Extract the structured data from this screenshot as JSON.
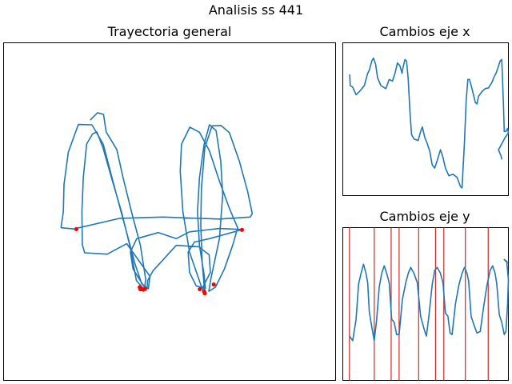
{
  "figure": {
    "suptitle": "Analisis ss 441",
    "colors": {
      "line": "#1f77b4",
      "marker": "#ff0000",
      "vline": "#d62728",
      "frame": "#000000"
    }
  },
  "chart_data": [
    {
      "type": "line",
      "title": "Trayectoria general",
      "axes_visible": false,
      "grid": false,
      "xlim": [
        0,
        1
      ],
      "ylim": [
        0,
        1
      ],
      "series": [
        {
          "values": [
            [
              0.262,
              0.772
            ],
            [
              0.283,
              0.793
            ],
            [
              0.301,
              0.788
            ],
            [
              0.309,
              0.736
            ],
            [
              0.341,
              0.684
            ],
            [
              0.36,
              0.6
            ],
            [
              0.385,
              0.5
            ],
            [
              0.412,
              0.4
            ],
            [
              0.428,
              0.3
            ],
            [
              0.424,
              0.268
            ],
            [
              0.4,
              0.296
            ],
            [
              0.38,
              0.4
            ],
            [
              0.355,
              0.5
            ],
            [
              0.325,
              0.6
            ],
            [
              0.299,
              0.69
            ],
            [
              0.281,
              0.736
            ],
            [
              0.268,
              0.73
            ],
            [
              0.25,
              0.7
            ],
            [
              0.24,
              0.6
            ],
            [
              0.236,
              0.5
            ],
            [
              0.237,
              0.402
            ],
            [
              0.244,
              0.378
            ],
            [
              0.312,
              0.374
            ],
            [
              0.371,
              0.405
            ],
            [
              0.441,
              0.308
            ],
            [
              0.436,
              0.271
            ],
            [
              0.416,
              0.286
            ],
            [
              0.396,
              0.345
            ],
            [
              0.37,
              0.44
            ],
            [
              0.34,
              0.55
            ],
            [
              0.3,
              0.7
            ],
            [
              0.266,
              0.757
            ],
            [
              0.225,
              0.758
            ],
            [
              0.195,
              0.676
            ],
            [
              0.182,
              0.58
            ],
            [
              0.18,
              0.5
            ],
            [
              0.173,
              0.453
            ],
            [
              0.176,
              0.452
            ],
            [
              0.219,
              0.448
            ],
            [
              0.222,
              0.451
            ],
            [
              0.35,
              0.48
            ],
            [
              0.48,
              0.484
            ],
            [
              0.65,
              0.478
            ],
            [
              0.743,
              0.484
            ],
            [
              0.749,
              0.494
            ],
            [
              0.735,
              0.56
            ],
            [
              0.71,
              0.65
            ],
            [
              0.68,
              0.734
            ],
            [
              0.655,
              0.755
            ],
            [
              0.628,
              0.754
            ],
            [
              0.606,
              0.689
            ],
            [
              0.596,
              0.57
            ],
            [
              0.594,
              0.46
            ],
            [
              0.598,
              0.35
            ],
            [
              0.605,
              0.269
            ],
            [
              0.603,
              0.265
            ],
            [
              0.595,
              0.28
            ],
            [
              0.56,
              0.38
            ],
            [
              0.54,
              0.5
            ],
            [
              0.532,
              0.62
            ],
            [
              0.536,
              0.7
            ],
            [
              0.561,
              0.75
            ],
            [
              0.59,
              0.735
            ],
            [
              0.62,
              0.68
            ],
            [
              0.65,
              0.59
            ],
            [
              0.68,
              0.51
            ],
            [
              0.705,
              0.452
            ],
            [
              0.69,
              0.4
            ],
            [
              0.665,
              0.33
            ],
            [
              0.638,
              0.276
            ],
            [
              0.618,
              0.264
            ],
            [
              0.624,
              0.3
            ],
            [
              0.65,
              0.42
            ],
            [
              0.66,
              0.55
            ],
            [
              0.654,
              0.65
            ],
            [
              0.64,
              0.74
            ],
            [
              0.62,
              0.757
            ],
            [
              0.604,
              0.7
            ],
            [
              0.59,
              0.6
            ],
            [
              0.584,
              0.5
            ],
            [
              0.59,
              0.4
            ],
            [
              0.604,
              0.312
            ],
            [
              0.608,
              0.272
            ],
            [
              0.58,
              0.28
            ],
            [
              0.56,
              0.32
            ],
            [
              0.556,
              0.38
            ],
            [
              0.575,
              0.41
            ],
            [
              0.62,
              0.42
            ],
            [
              0.72,
              0.447
            ],
            [
              0.65,
              0.45
            ],
            [
              0.56,
              0.44
            ],
            [
              0.52,
              0.42
            ],
            [
              0.466,
              0.438
            ],
            [
              0.401,
              0.42
            ],
            [
              0.382,
              0.38
            ],
            [
              0.39,
              0.33
            ],
            [
              0.426,
              0.273
            ],
            [
              0.432,
              0.273
            ],
            [
              0.434,
              0.296
            ],
            [
              0.45,
              0.325
            ],
            [
              0.52,
              0.4
            ],
            [
              0.588,
              0.396
            ],
            [
              0.619,
              0.372
            ],
            [
              0.623,
              0.32
            ],
            [
              0.6,
              0.276
            ]
          ]
        }
      ],
      "markers": [
        [
          0.219,
          0.448
        ],
        [
          0.41,
          0.276
        ],
        [
          0.412,
          0.27
        ],
        [
          0.416,
          0.271
        ],
        [
          0.421,
          0.269
        ],
        [
          0.426,
          0.271
        ],
        [
          0.591,
          0.27
        ],
        [
          0.604,
          0.263
        ],
        [
          0.606,
          0.258
        ],
        [
          0.633,
          0.284
        ],
        [
          0.718,
          0.446
        ]
      ]
    },
    {
      "type": "line",
      "title": "Cambios eje x",
      "axes_visible": false,
      "grid": false,
      "xlim": [
        0,
        1
      ],
      "ylim": [
        0,
        1
      ],
      "series": [
        {
          "values": [
            [
              0.042,
              0.79
            ],
            [
              0.045,
              0.72
            ],
            [
              0.06,
              0.71
            ],
            [
              0.08,
              0.66
            ],
            [
              0.1,
              0.68
            ],
            [
              0.13,
              0.72
            ],
            [
              0.15,
              0.8
            ],
            [
              0.16,
              0.82
            ],
            [
              0.175,
              0.88
            ],
            [
              0.185,
              0.9
            ],
            [
              0.198,
              0.86
            ],
            [
              0.21,
              0.77
            ],
            [
              0.23,
              0.72
            ],
            [
              0.26,
              0.7
            ],
            [
              0.28,
              0.76
            ],
            [
              0.3,
              0.75
            ],
            [
              0.315,
              0.8
            ],
            [
              0.33,
              0.868
            ],
            [
              0.345,
              0.85
            ],
            [
              0.358,
              0.8
            ],
            [
              0.36,
              0.82
            ],
            [
              0.375,
              0.89
            ],
            [
              0.385,
              0.88
            ],
            [
              0.395,
              0.76
            ],
            [
              0.405,
              0.56
            ],
            [
              0.415,
              0.4
            ],
            [
              0.43,
              0.37
            ],
            [
              0.455,
              0.36
            ],
            [
              0.47,
              0.42
            ],
            [
              0.48,
              0.45
            ],
            [
              0.495,
              0.38
            ],
            [
              0.51,
              0.34
            ],
            [
              0.525,
              0.29
            ],
            [
              0.54,
              0.2
            ],
            [
              0.555,
              0.18
            ],
            [
              0.57,
              0.23
            ],
            [
              0.59,
              0.3
            ],
            [
              0.605,
              0.25
            ],
            [
              0.62,
              0.18
            ],
            [
              0.64,
              0.13
            ],
            [
              0.665,
              0.14
            ],
            [
              0.69,
              0.12
            ],
            [
              0.71,
              0.06
            ],
            [
              0.72,
              0.05
            ],
            [
              0.735,
              0.35
            ],
            [
              0.745,
              0.62
            ],
            [
              0.755,
              0.76
            ],
            [
              0.765,
              0.76
            ],
            [
              0.78,
              0.7
            ],
            [
              0.8,
              0.61
            ],
            [
              0.81,
              0.6
            ],
            [
              0.82,
              0.65
            ],
            [
              0.84,
              0.68
            ],
            [
              0.86,
              0.7
            ],
            [
              0.88,
              0.705
            ],
            [
              0.9,
              0.74
            ],
            [
              0.915,
              0.78
            ],
            [
              0.925,
              0.8
            ],
            [
              0.935,
              0.83
            ],
            [
              0.95,
              0.88
            ],
            [
              0.96,
              0.89
            ],
            [
              0.97,
              0.6
            ],
            [
              0.975,
              0.42
            ],
            [
              0.985,
              0.42
            ],
            [
              0.995,
              0.44
            ],
            [
              1.0,
              0.41
            ],
            [
              0.98,
              0.38
            ],
            [
              0.965,
              0.35
            ],
            [
              0.94,
              0.3
            ],
            [
              0.955,
              0.26
            ],
            [
              0.96,
              0.24
            ]
          ]
        }
      ]
    },
    {
      "type": "line",
      "title": "Cambios eje y",
      "axes_visible": false,
      "grid": false,
      "xlim": [
        0,
        1
      ],
      "ylim": [
        0,
        1
      ],
      "series": [
        {
          "values": [
            [
              0.04,
              0.29
            ],
            [
              0.06,
              0.26
            ],
            [
              0.08,
              0.4
            ],
            [
              0.095,
              0.63
            ],
            [
              0.11,
              0.7
            ],
            [
              0.125,
              0.76
            ],
            [
              0.14,
              0.7
            ],
            [
              0.15,
              0.64
            ],
            [
              0.16,
              0.45
            ],
            [
              0.175,
              0.35
            ],
            [
              0.19,
              0.26
            ],
            [
              0.205,
              0.4
            ],
            [
              0.22,
              0.61
            ],
            [
              0.235,
              0.7
            ],
            [
              0.25,
              0.75
            ],
            [
              0.265,
              0.7
            ],
            [
              0.28,
              0.64
            ],
            [
              0.295,
              0.4
            ],
            [
              0.31,
              0.38
            ],
            [
              0.325,
              0.3
            ],
            [
              0.34,
              0.3
            ],
            [
              0.36,
              0.53
            ],
            [
              0.38,
              0.64
            ],
            [
              0.395,
              0.7
            ],
            [
              0.41,
              0.74
            ],
            [
              0.43,
              0.7
            ],
            [
              0.45,
              0.64
            ],
            [
              0.47,
              0.42
            ],
            [
              0.49,
              0.34
            ],
            [
              0.505,
              0.29
            ],
            [
              0.52,
              0.42
            ],
            [
              0.54,
              0.63
            ],
            [
              0.555,
              0.72
            ],
            [
              0.57,
              0.74
            ],
            [
              0.59,
              0.7
            ],
            [
              0.605,
              0.64
            ],
            [
              0.62,
              0.44
            ],
            [
              0.635,
              0.42
            ],
            [
              0.648,
              0.31
            ],
            [
              0.66,
              0.3
            ],
            [
              0.68,
              0.5
            ],
            [
              0.7,
              0.62
            ],
            [
              0.72,
              0.7
            ],
            [
              0.735,
              0.74
            ],
            [
              0.75,
              0.7
            ],
            [
              0.76,
              0.65
            ],
            [
              0.775,
              0.42
            ],
            [
              0.79,
              0.37
            ],
            [
              0.81,
              0.31
            ],
            [
              0.83,
              0.32
            ],
            [
              0.85,
              0.48
            ],
            [
              0.87,
              0.62
            ],
            [
              0.89,
              0.72
            ],
            [
              0.905,
              0.75
            ],
            [
              0.92,
              0.7
            ],
            [
              0.93,
              0.63
            ],
            [
              0.945,
              0.43
            ],
            [
              0.96,
              0.38
            ],
            [
              0.975,
              0.3
            ],
            [
              0.985,
              0.32
            ],
            [
              0.995,
              0.5
            ],
            [
              1.0,
              0.66
            ],
            [
              0.99,
              0.78
            ],
            [
              0.975,
              0.79
            ],
            [
              0.995,
              0.77
            ]
          ]
        }
      ],
      "vlines": [
        0.04,
        0.19,
        0.292,
        0.34,
        0.458,
        0.56,
        0.61,
        0.74,
        0.878
      ]
    }
  ]
}
